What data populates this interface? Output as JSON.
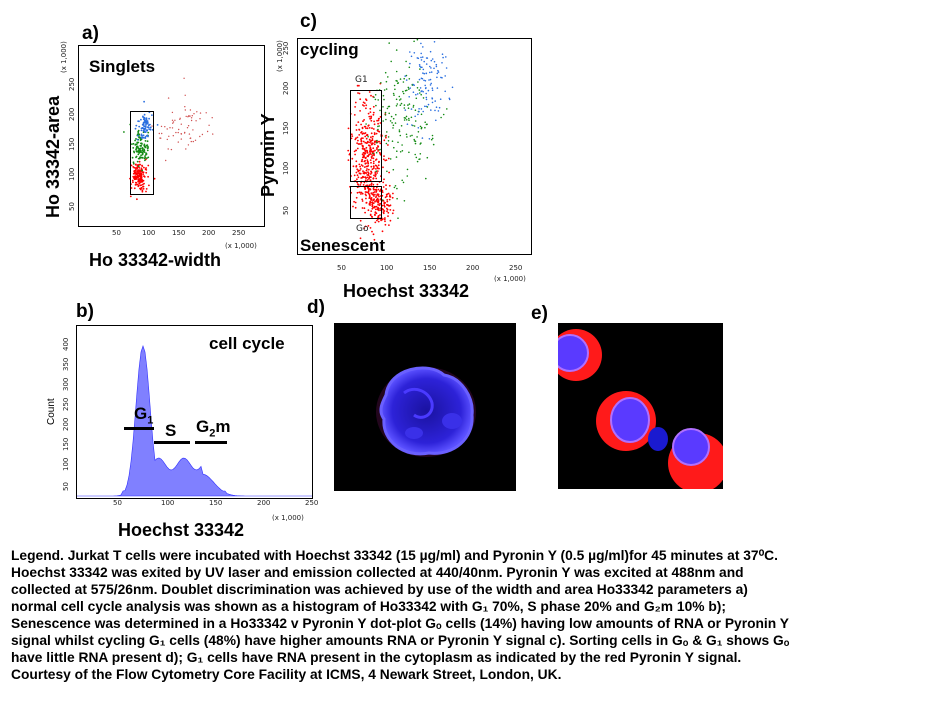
{
  "panels": {
    "a": {
      "letter": "a)",
      "label": "Singlets",
      "xlabel": "Ho 33342-width",
      "ylabel": "Ho 33342-area",
      "x_multiplier": "(x 1,000)",
      "y_multiplier": "(x 1,000)",
      "x_ticks": [
        "50",
        "100",
        "150",
        "200",
        "250"
      ],
      "y_ticks": [
        "50",
        "100",
        "150",
        "200",
        "250"
      ],
      "colors": {
        "red": "#ff0000",
        "green": "#138a13",
        "blue": "#2a6fe0",
        "pink": "#d05050"
      }
    },
    "b": {
      "letter": "b)",
      "label": "cell cycle",
      "xlabel": "Hoechst 33342",
      "ylabel": "Count",
      "x_multiplier": "(x 1,000)",
      "x_ticks": [
        "50",
        "100",
        "150",
        "200",
        "250"
      ],
      "y_ticks": [
        "50",
        "100",
        "150",
        "200",
        "250",
        "300",
        "350",
        "400"
      ],
      "gate_g1_main": "G",
      "gate_g1_sub": "1",
      "gate_s": "S",
      "gate_g2m_main": "G",
      "gate_g2m_sub": "2",
      "gate_g2m_tail": "m",
      "fill_color": "#8080ff"
    },
    "c": {
      "letter": "c)",
      "label_top": "cycling",
      "label_bottom": "Senescent",
      "xlabel": "Hoechst 33342",
      "ylabel": "Pyronin Y",
      "x_multiplier": "(x 1,000)",
      "y_multiplier": "(x 1,000)",
      "x_ticks": [
        "50",
        "100",
        "150",
        "200",
        "250"
      ],
      "y_ticks": [
        "50",
        "100",
        "150",
        "200",
        "250"
      ],
      "gate_g1": "G1",
      "gate_g0": "Go"
    },
    "d": {
      "letter": "d)"
    },
    "e": {
      "letter": "e)"
    }
  },
  "legend_lines": [
    "Legend. Jurkat T cells were incubated with Hoechst 33342 (15 µg/ml) and Pyronin Y (0.5 µg/ml)for 45 minutes at 37⁰C.",
    "Hoechst 33342 was exited by UV laser and emission collected at 440/40nm. Pyronin Y was excited at 488nm and",
    "collected at 575/26nm. Doublet discrimination was achieved by  use of the width and area Ho33342 parameters a)",
    "normal cell cycle analysis was shown as a histogram of Ho33342 with G₁ 70%, S phase 20% and G₂m 10% b);",
    "Senescence was determined in a Ho33342 v Pyronin Y dot-plot Gₒ cells (14%) having low amounts of RNA or Pyronin Y",
    "signal whilst cycling G₁ cells (48%) have higher amounts RNA or Pyronin Y signal c).  Sorting cells in Gₒ & G₁ shows Gₒ",
    " have little  RNA present d); G₁ cells have RNA present in the cytoplasm as indicated by the red Pyronin Y signal.",
    " Courtesy of the Flow Cytometry Core Facility at ICMS, 4 Newark Street, London, UK."
  ]
}
